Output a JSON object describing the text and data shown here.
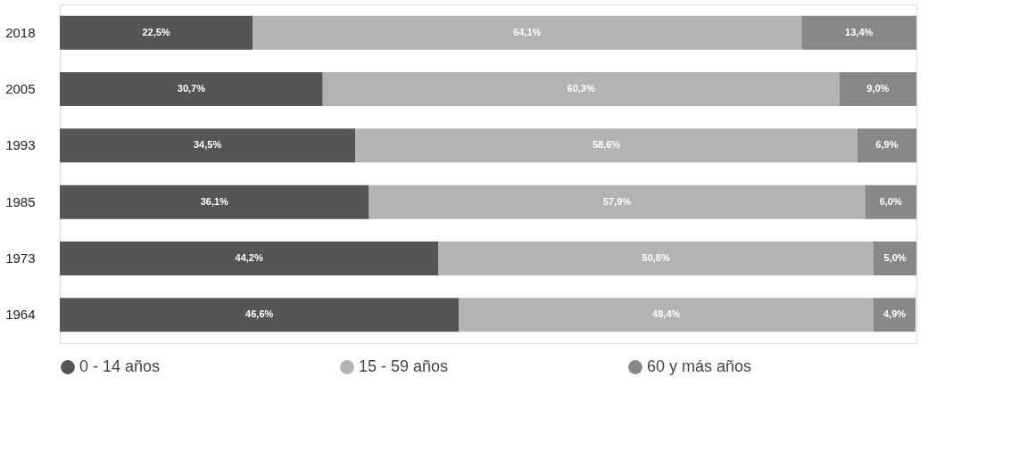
{
  "chart_data": {
    "type": "bar",
    "orientation": "horizontal",
    "stacked": true,
    "legend": "bottom",
    "grid": false,
    "tick_labels": "y",
    "categories": [
      "2018",
      "2005",
      "1993",
      "1985",
      "1973",
      "1964"
    ],
    "series": [
      {
        "name": "0 - 14 años",
        "color": "#555555",
        "values": [
          22.5,
          30.7,
          34.5,
          36.1,
          44.2,
          46.6
        ],
        "value_labels": [
          "22,5%",
          "30,7%",
          "34,5%",
          "36,1%",
          "44,2%",
          "46,6%"
        ]
      },
      {
        "name": "15 - 59 años",
        "color": "#b3b3b3",
        "values": [
          64.1,
          60.3,
          58.6,
          57.9,
          50.8,
          48.4
        ],
        "value_labels": [
          "64,1%",
          "60,3%",
          "58,6%",
          "57,9%",
          "50,8%",
          "48,4%"
        ]
      },
      {
        "name": "60 y más años",
        "color": "#888888",
        "values": [
          13.4,
          9.0,
          6.9,
          6.0,
          5.0,
          4.9
        ],
        "value_labels": [
          "13,4%",
          "9,0%",
          "6,9%",
          "6,0%",
          "5,0%",
          "4,9%"
        ]
      }
    ]
  }
}
